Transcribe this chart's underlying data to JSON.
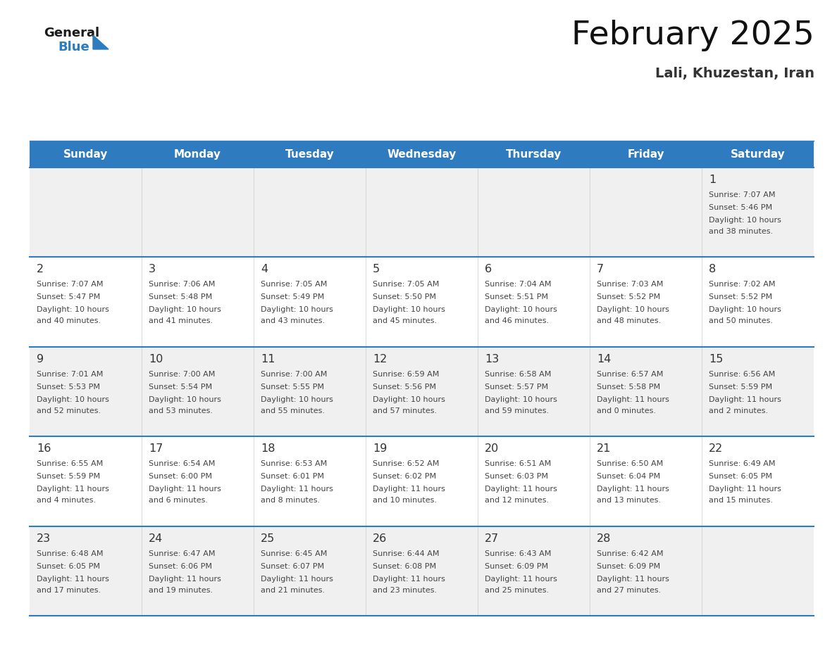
{
  "title": "February 2025",
  "subtitle": "Lali, Khuzestan, Iran",
  "header_color": "#2E7BBF",
  "header_text_color": "#FFFFFF",
  "day_names": [
    "Sunday",
    "Monday",
    "Tuesday",
    "Wednesday",
    "Thursday",
    "Friday",
    "Saturday"
  ],
  "bg_color": "#FFFFFF",
  "cell_bg_row0": "#F0F0F0",
  "cell_bg_row1": "#FFFFFF",
  "separator_color": "#2E7BBF",
  "day_num_color": "#333333",
  "text_color": "#444444",
  "calendar": [
    [
      null,
      null,
      null,
      null,
      null,
      null,
      {
        "day": "1",
        "sunrise": "7:07 AM",
        "sunset": "5:46 PM",
        "daylight": "10 hours",
        "daylight2": "and 38 minutes."
      }
    ],
    [
      {
        "day": "2",
        "sunrise": "7:07 AM",
        "sunset": "5:47 PM",
        "daylight": "10 hours",
        "daylight2": "and 40 minutes."
      },
      {
        "day": "3",
        "sunrise": "7:06 AM",
        "sunset": "5:48 PM",
        "daylight": "10 hours",
        "daylight2": "and 41 minutes."
      },
      {
        "day": "4",
        "sunrise": "7:05 AM",
        "sunset": "5:49 PM",
        "daylight": "10 hours",
        "daylight2": "and 43 minutes."
      },
      {
        "day": "5",
        "sunrise": "7:05 AM",
        "sunset": "5:50 PM",
        "daylight": "10 hours",
        "daylight2": "and 45 minutes."
      },
      {
        "day": "6",
        "sunrise": "7:04 AM",
        "sunset": "5:51 PM",
        "daylight": "10 hours",
        "daylight2": "and 46 minutes."
      },
      {
        "day": "7",
        "sunrise": "7:03 AM",
        "sunset": "5:52 PM",
        "daylight": "10 hours",
        "daylight2": "and 48 minutes."
      },
      {
        "day": "8",
        "sunrise": "7:02 AM",
        "sunset": "5:52 PM",
        "daylight": "10 hours",
        "daylight2": "and 50 minutes."
      }
    ],
    [
      {
        "day": "9",
        "sunrise": "7:01 AM",
        "sunset": "5:53 PM",
        "daylight": "10 hours",
        "daylight2": "and 52 minutes."
      },
      {
        "day": "10",
        "sunrise": "7:00 AM",
        "sunset": "5:54 PM",
        "daylight": "10 hours",
        "daylight2": "and 53 minutes."
      },
      {
        "day": "11",
        "sunrise": "7:00 AM",
        "sunset": "5:55 PM",
        "daylight": "10 hours",
        "daylight2": "and 55 minutes."
      },
      {
        "day": "12",
        "sunrise": "6:59 AM",
        "sunset": "5:56 PM",
        "daylight": "10 hours",
        "daylight2": "and 57 minutes."
      },
      {
        "day": "13",
        "sunrise": "6:58 AM",
        "sunset": "5:57 PM",
        "daylight": "10 hours",
        "daylight2": "and 59 minutes."
      },
      {
        "day": "14",
        "sunrise": "6:57 AM",
        "sunset": "5:58 PM",
        "daylight": "11 hours",
        "daylight2": "and 0 minutes."
      },
      {
        "day": "15",
        "sunrise": "6:56 AM",
        "sunset": "5:59 PM",
        "daylight": "11 hours",
        "daylight2": "and 2 minutes."
      }
    ],
    [
      {
        "day": "16",
        "sunrise": "6:55 AM",
        "sunset": "5:59 PM",
        "daylight": "11 hours",
        "daylight2": "and 4 minutes."
      },
      {
        "day": "17",
        "sunrise": "6:54 AM",
        "sunset": "6:00 PM",
        "daylight": "11 hours",
        "daylight2": "and 6 minutes."
      },
      {
        "day": "18",
        "sunrise": "6:53 AM",
        "sunset": "6:01 PM",
        "daylight": "11 hours",
        "daylight2": "and 8 minutes."
      },
      {
        "day": "19",
        "sunrise": "6:52 AM",
        "sunset": "6:02 PM",
        "daylight": "11 hours",
        "daylight2": "and 10 minutes."
      },
      {
        "day": "20",
        "sunrise": "6:51 AM",
        "sunset": "6:03 PM",
        "daylight": "11 hours",
        "daylight2": "and 12 minutes."
      },
      {
        "day": "21",
        "sunrise": "6:50 AM",
        "sunset": "6:04 PM",
        "daylight": "11 hours",
        "daylight2": "and 13 minutes."
      },
      {
        "day": "22",
        "sunrise": "6:49 AM",
        "sunset": "6:05 PM",
        "daylight": "11 hours",
        "daylight2": "and 15 minutes."
      }
    ],
    [
      {
        "day": "23",
        "sunrise": "6:48 AM",
        "sunset": "6:05 PM",
        "daylight": "11 hours",
        "daylight2": "and 17 minutes."
      },
      {
        "day": "24",
        "sunrise": "6:47 AM",
        "sunset": "6:06 PM",
        "daylight": "11 hours",
        "daylight2": "and 19 minutes."
      },
      {
        "day": "25",
        "sunrise": "6:45 AM",
        "sunset": "6:07 PM",
        "daylight": "11 hours",
        "daylight2": "and 21 minutes."
      },
      {
        "day": "26",
        "sunrise": "6:44 AM",
        "sunset": "6:08 PM",
        "daylight": "11 hours",
        "daylight2": "and 23 minutes."
      },
      {
        "day": "27",
        "sunrise": "6:43 AM",
        "sunset": "6:09 PM",
        "daylight": "11 hours",
        "daylight2": "and 25 minutes."
      },
      {
        "day": "28",
        "sunrise": "6:42 AM",
        "sunset": "6:09 PM",
        "daylight": "11 hours",
        "daylight2": "and 27 minutes."
      },
      null
    ]
  ],
  "logo_general_color": "#1a1a1a",
  "logo_blue_color": "#2E7BBF",
  "logo_triangle_color": "#2E7BBF"
}
